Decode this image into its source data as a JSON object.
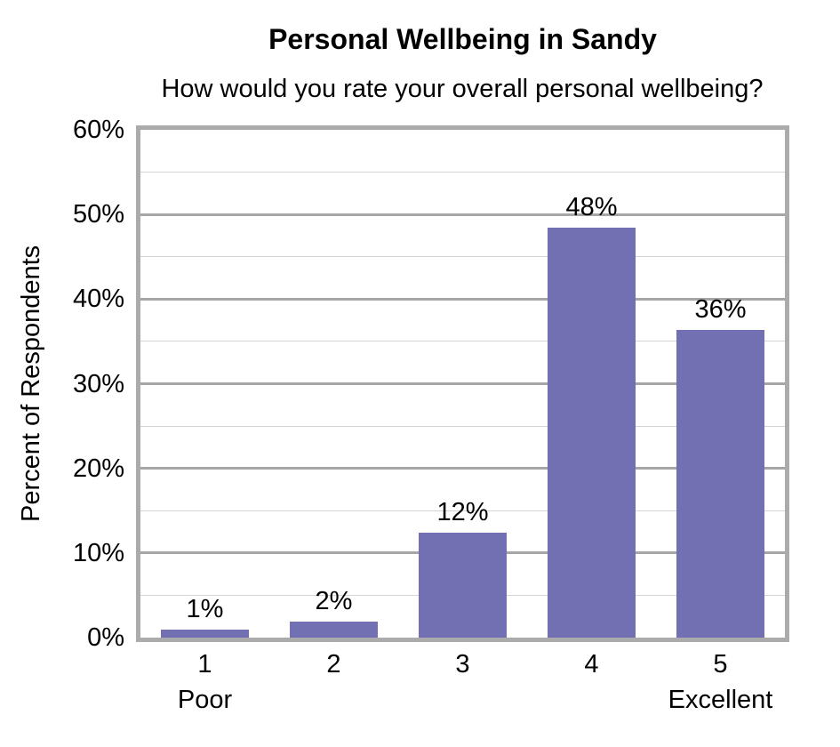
{
  "chart_data": {
    "type": "bar",
    "title": "Personal Wellbeing in Sandy",
    "subtitle": "How would you rate your overall personal wellbeing?",
    "xlabel": "",
    "ylabel": "Percent of Respondents",
    "categories": [
      "1",
      "2",
      "3",
      "4",
      "5"
    ],
    "category_sublabels": [
      "Poor",
      "",
      "",
      "",
      "Excellent"
    ],
    "values": [
      0.9,
      1.9,
      12.4,
      48.4,
      36.4
    ],
    "data_labels": [
      "1%",
      "2%",
      "12%",
      "48%",
      "36%"
    ],
    "ylim": [
      0,
      60
    ],
    "y_major_step": 10,
    "y_minor_step": 5,
    "y_tick_labels": [
      "0%",
      "10%",
      "20%",
      "30%",
      "40%",
      "50%",
      "60%"
    ],
    "grid": true,
    "legend": "none",
    "colors": {
      "bar": "#736fb3",
      "major_gridline": "#a6a6a6",
      "minor_gridline": "#d4d4d4",
      "plot_border": "#ababab",
      "text": "#000000"
    }
  }
}
